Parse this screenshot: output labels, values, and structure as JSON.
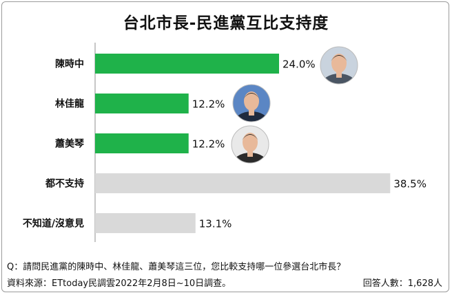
{
  "chart_data": {
    "type": "bar",
    "orientation": "horizontal",
    "title": "台北市長-民進黨互比支持度",
    "categories": [
      "陳時中",
      "林佳龍",
      "蕭美琴",
      "都不支持",
      "不知道/沒意見"
    ],
    "values": [
      24.0,
      12.2,
      12.2,
      38.5,
      13.1
    ],
    "value_labels": [
      "24.0%",
      "12.2%",
      "12.2%",
      "38.5%",
      "13.1%"
    ],
    "unit": "%",
    "bar_colors": [
      "#1fb24a",
      "#1fb24a",
      "#1fb24a",
      "#d9d9d9",
      "#d9d9d9"
    ],
    "xlim": [
      0,
      40
    ],
    "grid": false,
    "legend": "none"
  },
  "footer": {
    "question": "Q：請問民進黨的陳時中、林佳龍、蕭美琴這三位，您比較支持哪一位參選台北市長？",
    "source": "資料來源：ETtoday民調雲2022年2月8日~10日調查。",
    "respondents": "回答人數：1,628人"
  },
  "photos": [
    {
      "category": "陳時中",
      "icon": "portrait-photo",
      "bg": "#c9d3de",
      "suit": "#4a5563"
    },
    {
      "category": "林佳龍",
      "icon": "portrait-photo",
      "bg": "#5b86c4",
      "suit": "#1f2a3e"
    },
    {
      "category": "蕭美琴",
      "icon": "portrait-photo",
      "bg": "#e9e9e9",
      "suit": "#2b2b2b"
    }
  ]
}
